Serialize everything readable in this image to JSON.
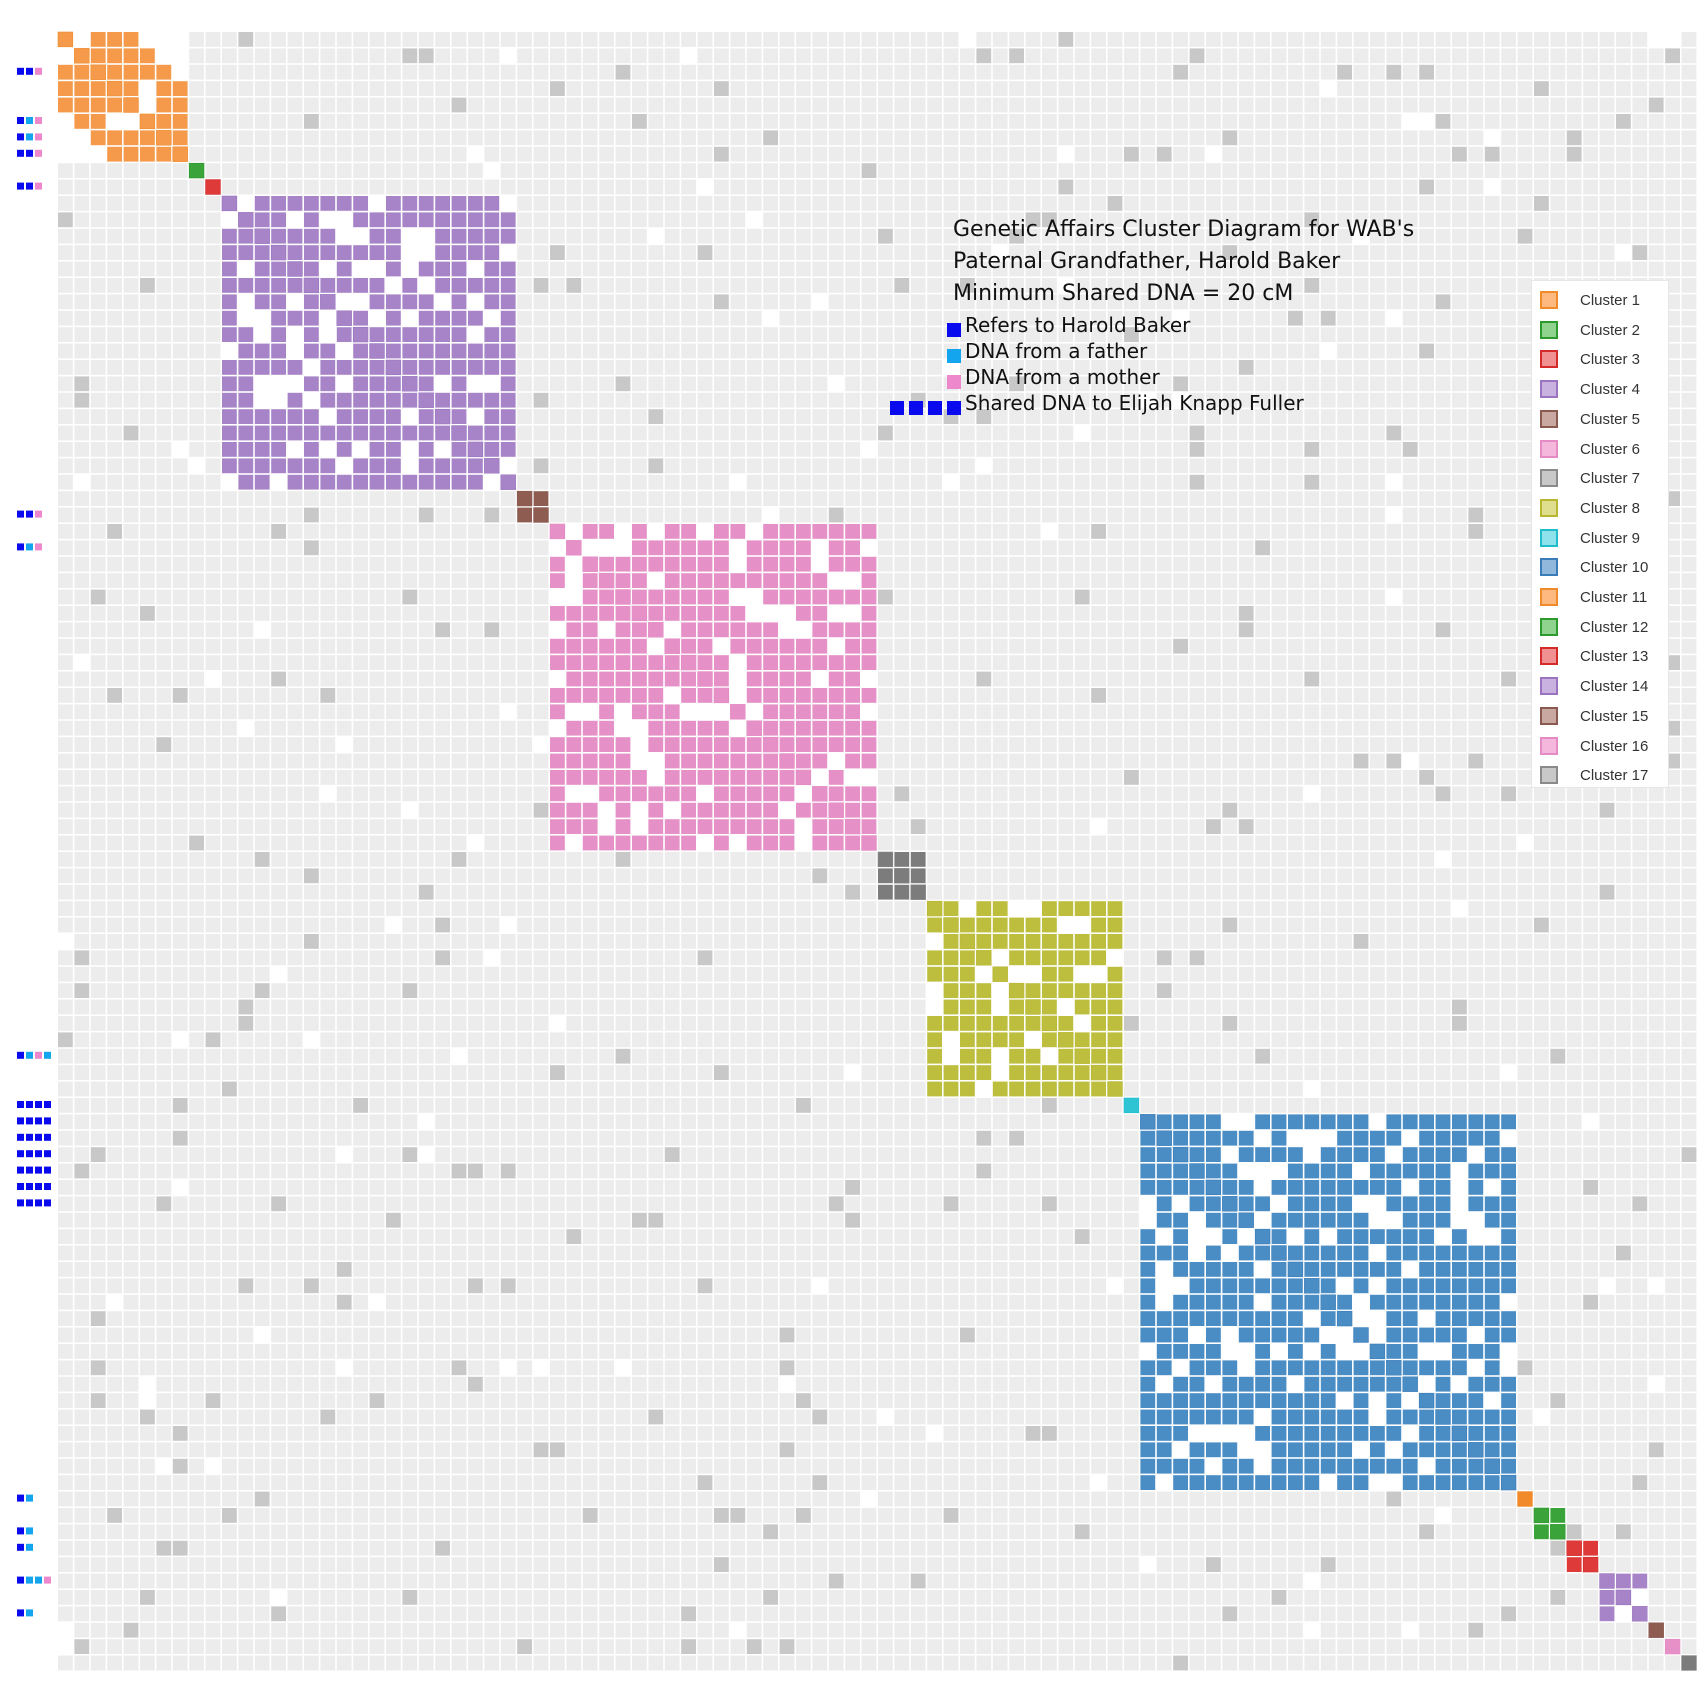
{
  "chart_data": {
    "type": "heatmap",
    "title_lines": [
      "Genetic Affairs Cluster Diagram for WAB's",
      "Paternal Grandfather, Harold Baker",
      "Minimum Shared DNA = 20 cM"
    ],
    "key": [
      {
        "label": "Refers to Harold Baker",
        "colors": [
          "#0a0aee"
        ]
      },
      {
        "label": "DNA from a father",
        "colors": [
          "#13a6ee"
        ]
      },
      {
        "label": "DNA from a mother",
        "colors": [
          "#ee88cc"
        ]
      },
      {
        "label": "Shared DNA to Elijah Knapp Fuller",
        "colors": [
          "#0a0aee",
          "#0a0aee",
          "#0a0aee",
          "#0a0aee"
        ]
      }
    ],
    "matrix_size": 100,
    "clusters": [
      {
        "name": "Cluster 1",
        "start": 0,
        "size": 8,
        "fill": "#f49a4a",
        "swatch": "#fdb97f",
        "border": "#f08a2a",
        "density": 0.62
      },
      {
        "name": "Cluster 2",
        "start": 8,
        "size": 1,
        "fill": "#3aa33a",
        "swatch": "#8fd38f",
        "border": "#2c9a2c",
        "density": 1.0
      },
      {
        "name": "Cluster 3",
        "start": 9,
        "size": 1,
        "fill": "#de3a3a",
        "swatch": "#f09090",
        "border": "#d42a2a",
        "density": 1.0
      },
      {
        "name": "Cluster 4",
        "start": 10,
        "size": 18,
        "fill": "#a784c8",
        "swatch": "#c9b2e0",
        "border": "#9a74c0",
        "density": 0.82
      },
      {
        "name": "Cluster 5",
        "start": 28,
        "size": 2,
        "fill": "#8f5c52",
        "swatch": "#c8a8a0",
        "border": "#8a5a50",
        "density": 1.0
      },
      {
        "name": "Cluster 6",
        "start": 30,
        "size": 20,
        "fill": "#e591c8",
        "swatch": "#f5b8dc",
        "border": "#e48ac4",
        "density": 0.83
      },
      {
        "name": "Cluster 7",
        "start": 50,
        "size": 3,
        "fill": "#7c7c7c",
        "swatch": "#c8c8c8",
        "border": "#8a8a8a",
        "density": 1.0
      },
      {
        "name": "Cluster 8",
        "start": 53,
        "size": 12,
        "fill": "#bdbd3e",
        "swatch": "#dede8e",
        "border": "#b8b830",
        "density": 0.8
      },
      {
        "name": "Cluster 9",
        "start": 65,
        "size": 1,
        "fill": "#2ec4d4",
        "swatch": "#8ee2ec",
        "border": "#20bccc",
        "density": 1.0
      },
      {
        "name": "Cluster 10",
        "start": 66,
        "size": 23,
        "fill": "#4a8cc4",
        "swatch": "#90b8dc",
        "border": "#3a7cb8",
        "density": 0.78
      },
      {
        "name": "Cluster 11",
        "start": 89,
        "size": 1,
        "fill": "#f08a2a",
        "swatch": "#fdb97f",
        "border": "#f08a2a",
        "density": 1.0
      },
      {
        "name": "Cluster 12",
        "start": 90,
        "size": 2,
        "fill": "#3aa33a",
        "swatch": "#8fd38f",
        "border": "#2c9a2c",
        "density": 1.0
      },
      {
        "name": "Cluster 13",
        "start": 92,
        "size": 2,
        "fill": "#de3a3a",
        "swatch": "#f09090",
        "border": "#d42a2a",
        "density": 0.85
      },
      {
        "name": "Cluster 14",
        "start": 94,
        "size": 3,
        "fill": "#a784c8",
        "swatch": "#c9b2e0",
        "border": "#9a74c0",
        "density": 0.85
      },
      {
        "name": "Cluster 15",
        "start": 97,
        "size": 1,
        "fill": "#8f5c52",
        "swatch": "#c8a8a0",
        "border": "#8a5a50",
        "density": 1.0
      },
      {
        "name": "Cluster 16",
        "start": 98,
        "size": 1,
        "fill": "#e591c8",
        "swatch": "#f5b8dc",
        "border": "#e48ac4",
        "density": 1.0
      },
      {
        "name": "Cluster 17",
        "start": 99,
        "size": 1,
        "fill": "#7c7c7c",
        "swatch": "#c8c8c8",
        "border": "#8a8a8a",
        "density": 1.0
      }
    ],
    "marker_colors": {
      "harold": "#0a0aee",
      "father": "#13a6ee",
      "mother": "#ee88cc"
    },
    "row_markers": [
      {
        "row": 2,
        "icons": [
          "harold",
          "harold",
          "mother"
        ]
      },
      {
        "row": 5,
        "icons": [
          "harold",
          "father",
          "mother"
        ]
      },
      {
        "row": 6,
        "icons": [
          "harold",
          "father",
          "mother"
        ]
      },
      {
        "row": 7,
        "icons": [
          "harold",
          "harold",
          "mother"
        ]
      },
      {
        "row": 9,
        "icons": [
          "harold",
          "harold",
          "mother"
        ]
      },
      {
        "row": 29,
        "icons": [
          "harold",
          "harold",
          "mother"
        ]
      },
      {
        "row": 31,
        "icons": [
          "harold",
          "father",
          "mother"
        ]
      },
      {
        "row": 62,
        "icons": [
          "harold",
          "father",
          "mother",
          "father"
        ]
      },
      {
        "row": 65,
        "icons": [
          "harold",
          "harold",
          "harold",
          "harold"
        ]
      },
      {
        "row": 66,
        "icons": [
          "harold",
          "harold",
          "harold",
          "harold"
        ]
      },
      {
        "row": 67,
        "icons": [
          "harold",
          "harold",
          "harold",
          "harold"
        ]
      },
      {
        "row": 68,
        "icons": [
          "harold",
          "harold",
          "harold",
          "harold"
        ]
      },
      {
        "row": 69,
        "icons": [
          "harold",
          "harold",
          "harold",
          "harold"
        ]
      },
      {
        "row": 70,
        "icons": [
          "harold",
          "harold",
          "harold",
          "harold"
        ]
      },
      {
        "row": 71,
        "icons": [
          "harold",
          "harold",
          "harold",
          "harold"
        ]
      },
      {
        "row": 89,
        "icons": [
          "harold",
          "father"
        ]
      },
      {
        "row": 91,
        "icons": [
          "harold",
          "father"
        ]
      },
      {
        "row": 92,
        "icons": [
          "harold",
          "father"
        ]
      },
      {
        "row": 94,
        "icons": [
          "harold",
          "father",
          "father",
          "mother"
        ]
      },
      {
        "row": 96,
        "icons": [
          "harold",
          "father"
        ]
      }
    ],
    "grid": true,
    "legend_position": "right"
  }
}
